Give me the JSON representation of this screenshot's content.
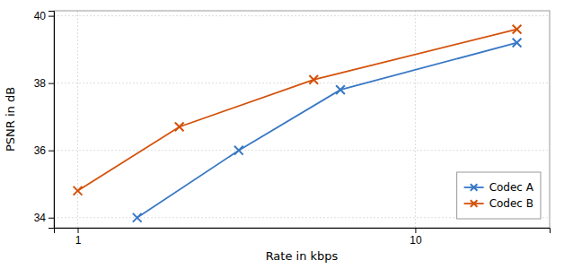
{
  "chart_data": {
    "type": "line",
    "xlabel": "Rate in kbps",
    "ylabel": "PSNR in dB",
    "log": "x",
    "xlim": [
      0.85,
      25
    ],
    "ylim": [
      33.7,
      40.15
    ],
    "xticks": [
      1,
      10
    ],
    "yticks": [
      34,
      36,
      38,
      40
    ],
    "grid": true,
    "legend": "lower right",
    "marker": "x",
    "series": [
      {
        "name": "Codec A",
        "color": "#3878c5",
        "x": [
          1.5,
          3.0,
          6.0,
          20.0
        ],
        "values": [
          34.0,
          36.0,
          37.8,
          39.2
        ]
      },
      {
        "name": "Codec B",
        "color": "#d4510a",
        "x": [
          1.0,
          2.0,
          5.0,
          20.0
        ],
        "values": [
          34.8,
          36.7,
          38.1,
          39.6
        ]
      }
    ]
  }
}
